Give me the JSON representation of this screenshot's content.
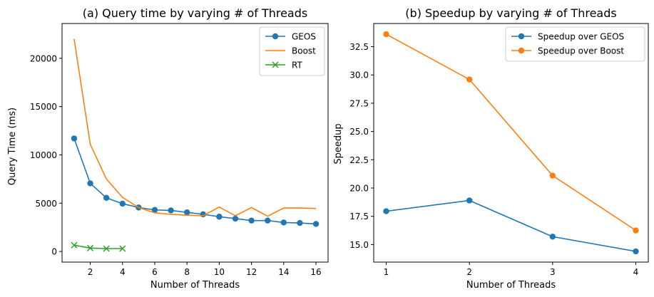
{
  "colors": {
    "blue": "#1f77b4",
    "orange": "#ff7f0e",
    "green": "#2ca02c"
  },
  "chart_data": [
    {
      "type": "line",
      "title": "(a) Query time by varying # of Threads",
      "xlabel": "Number of Threads",
      "ylabel": "Query Time (ms)",
      "xlim": [
        0.25,
        16.75
      ],
      "ylim": [
        -1100,
        23600
      ],
      "xticks": [
        2,
        4,
        6,
        8,
        10,
        12,
        14,
        16
      ],
      "yticks": [
        0,
        5000,
        10000,
        15000,
        20000
      ],
      "grid": false,
      "legend": "top-right",
      "series": [
        {
          "name": "GEOS",
          "marker": "circle",
          "color": "#1f77b4",
          "x": [
            1,
            2,
            3,
            4,
            5,
            6,
            7,
            8,
            9,
            10,
            11,
            12,
            13,
            14,
            15,
            16
          ],
          "y": [
            11700,
            7050,
            5550,
            4950,
            4550,
            4300,
            4250,
            4050,
            3850,
            3600,
            3400,
            3200,
            3200,
            3000,
            2950,
            2850
          ]
        },
        {
          "name": "Boost",
          "marker": "none",
          "color": "#ff7f0e",
          "x": [
            1,
            2,
            3,
            4,
            5,
            6,
            7,
            8,
            9,
            10,
            11,
            12,
            13,
            14,
            15,
            16
          ],
          "y": [
            22000,
            11100,
            7500,
            5600,
            4550,
            4000,
            3850,
            3750,
            3700,
            4600,
            3700,
            4550,
            3650,
            4500,
            4500,
            4450
          ]
        },
        {
          "name": "RT",
          "marker": "x",
          "color": "#2ca02c",
          "x": [
            1,
            2,
            3,
            4
          ],
          "y": [
            650,
            350,
            300,
            300
          ]
        }
      ]
    },
    {
      "type": "line",
      "title": "(b) Speedup by varying # of Threads",
      "xlabel": "Number of Threads",
      "ylabel": "Speedup",
      "xlim": [
        0.85,
        4.15
      ],
      "ylim": [
        13.45,
        34.55
      ],
      "xticks": [
        1,
        2,
        3,
        4
      ],
      "yticks": [
        15.0,
        17.5,
        20.0,
        22.5,
        25.0,
        27.5,
        30.0,
        32.5
      ],
      "grid": false,
      "legend": "top-right",
      "series": [
        {
          "name": "Speedup over GEOS",
          "marker": "circle",
          "color": "#1f77b4",
          "x": [
            1,
            2,
            3,
            4
          ],
          "y": [
            17.95,
            18.9,
            15.7,
            14.4
          ]
        },
        {
          "name": "Speedup over Boost",
          "marker": "circle",
          "color": "#ff7f0e",
          "x": [
            1,
            2,
            3,
            4
          ],
          "y": [
            33.6,
            29.6,
            21.1,
            16.25
          ]
        }
      ]
    }
  ]
}
